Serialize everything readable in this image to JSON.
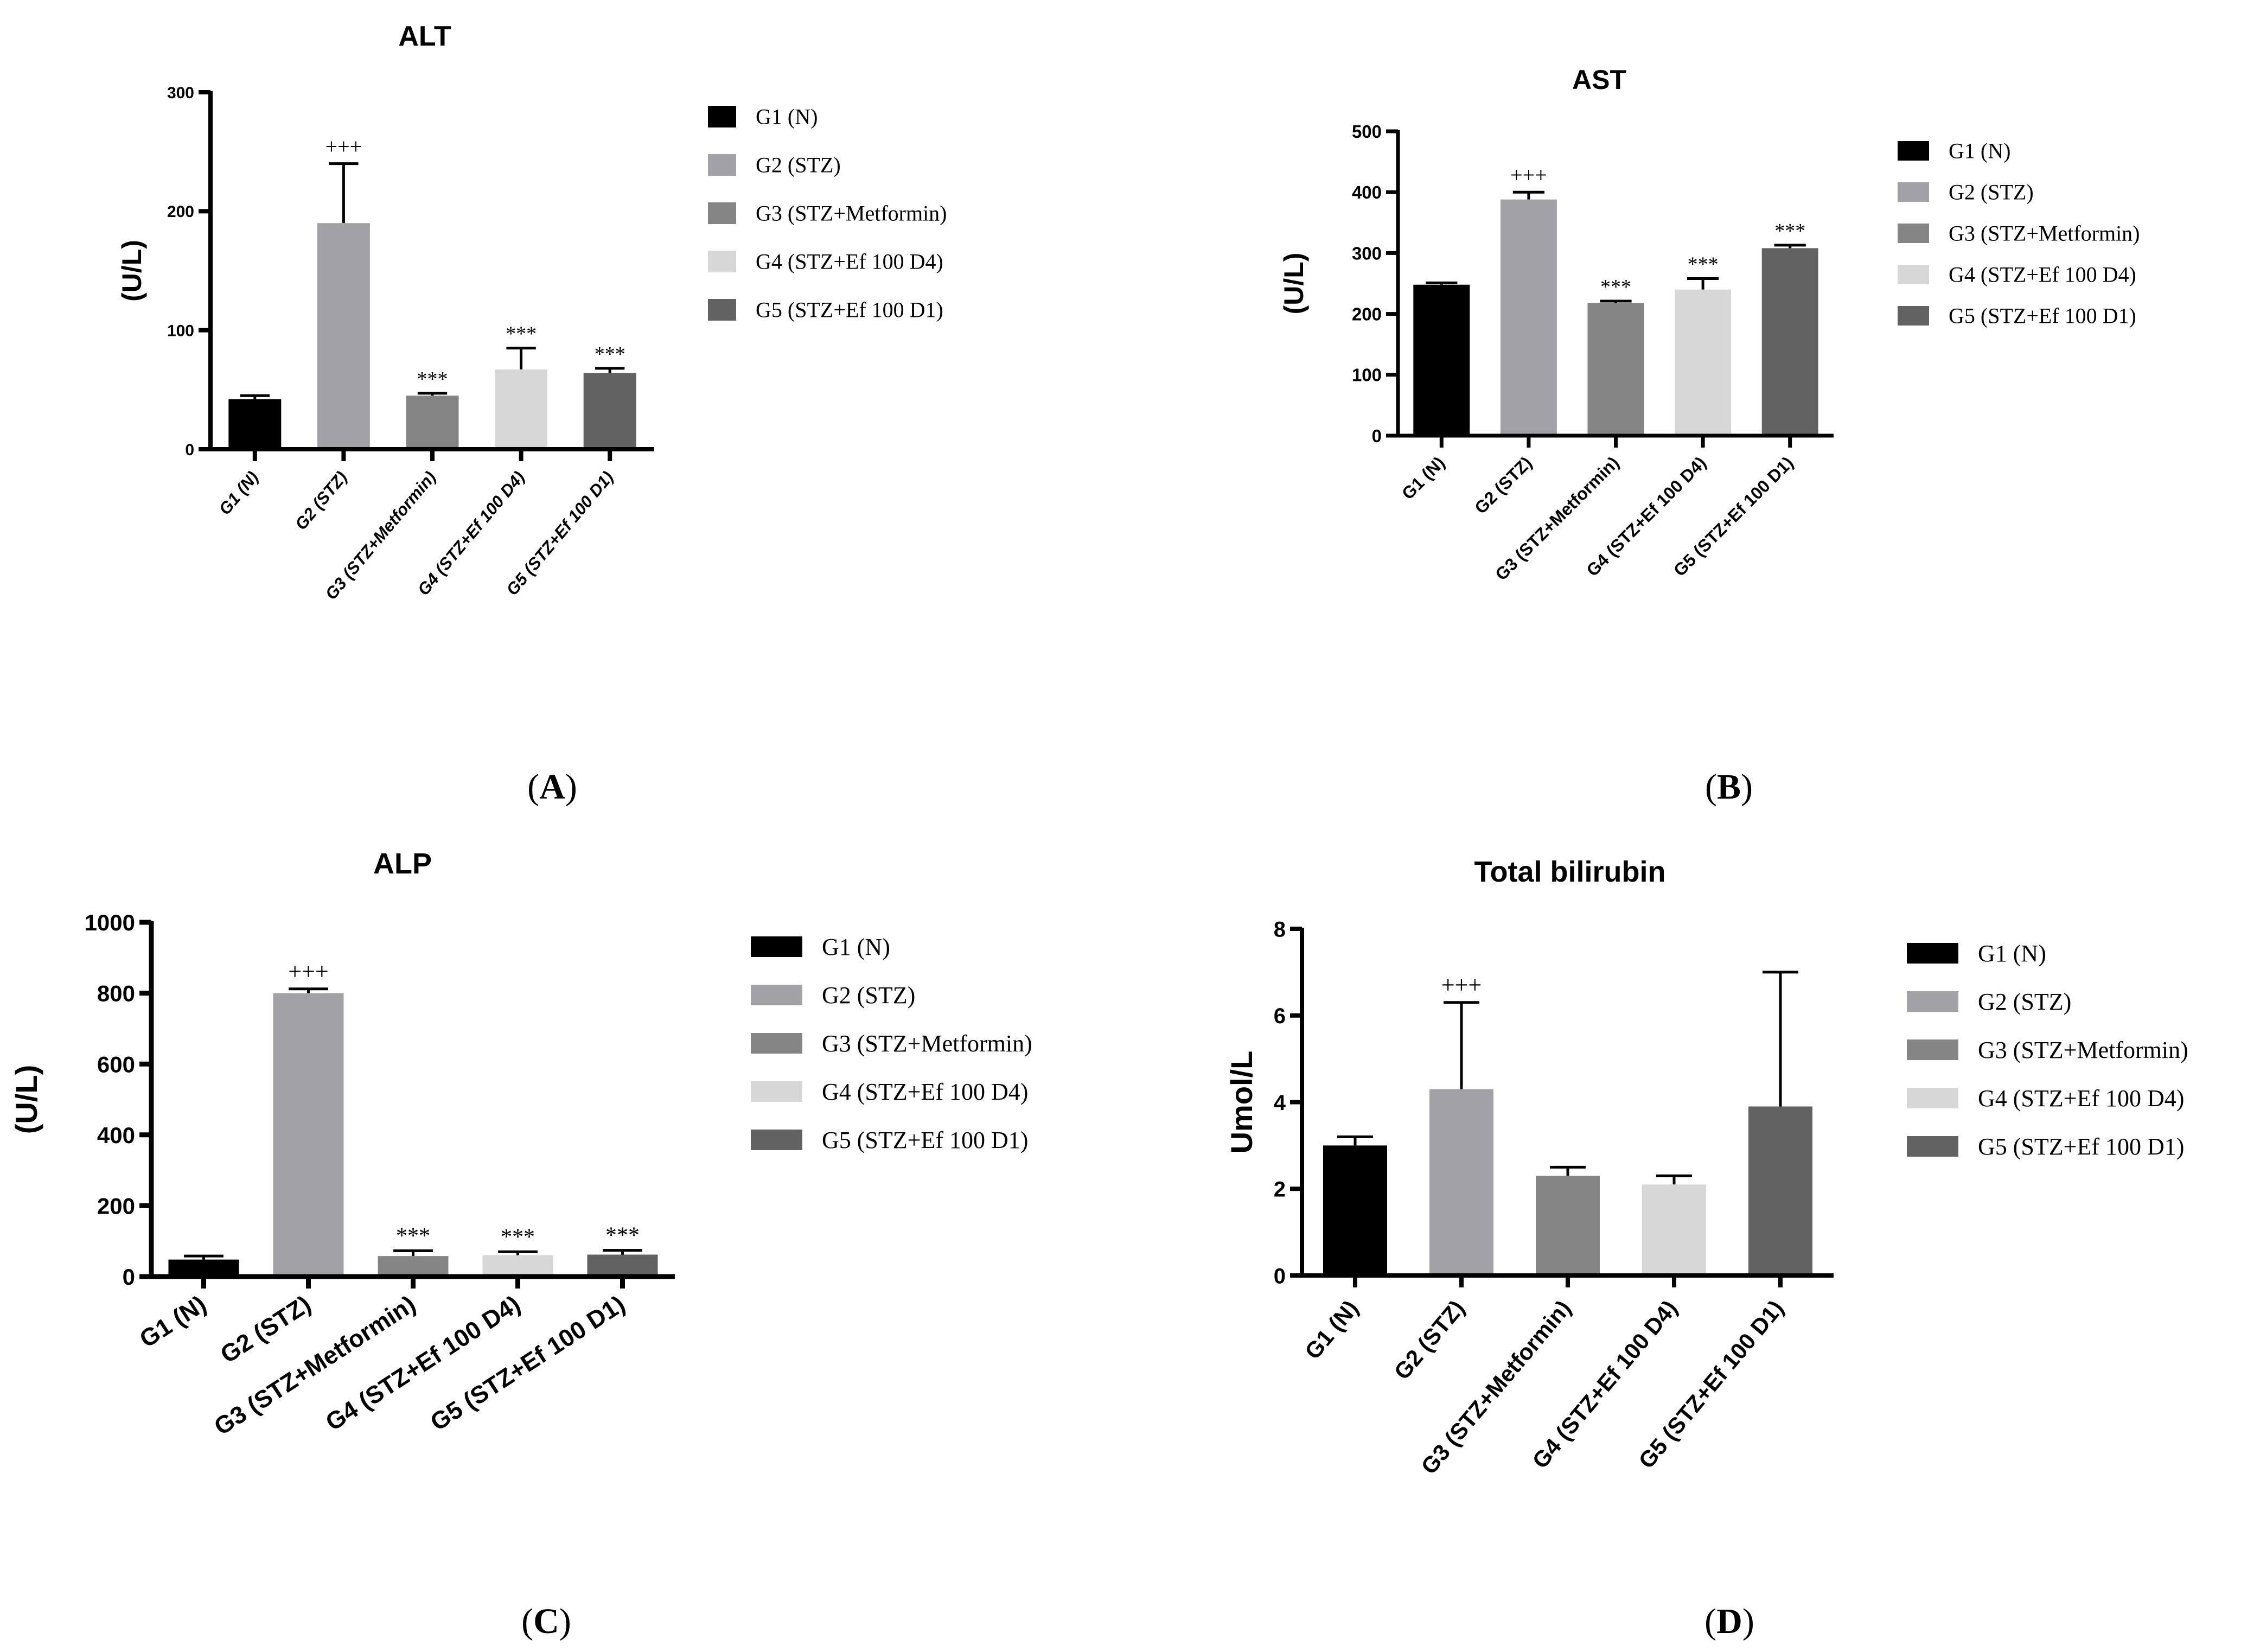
{
  "colors": {
    "G1": "#000000",
    "G2": "#a2a2a6",
    "G3": "#858585",
    "G4": "#d7d7d7",
    "G5": "#626262"
  },
  "chart_data": [
    {
      "panel": "A",
      "panel_label": "(A)",
      "type": "bar",
      "title": "ALT",
      "ylabel": "(U/L)",
      "xlabel": "",
      "ylim": [
        0,
        300
      ],
      "yticks": [
        0,
        100,
        200,
        300
      ],
      "italic_ticks": true,
      "categories": [
        "G1 (N)",
        "G2 (STZ)",
        "G3 (STZ+Metformin)",
        "G4 (STZ+Ef 100 D4)",
        "G5 (STZ+Ef 100 D1)"
      ],
      "values": [
        42,
        190,
        45,
        67,
        64
      ],
      "errors": [
        3,
        50,
        2,
        18,
        4
      ],
      "annotations": [
        "",
        "+++",
        "***",
        "***",
        "***"
      ],
      "legend": [
        "G1 (N)",
        "G2 (STZ)",
        "G3 (STZ+Metformin)",
        "G4 (STZ+Ef 100 D4)",
        "G5 (STZ+Ef 100 D1)"
      ]
    },
    {
      "panel": "B",
      "panel_label": "(B)",
      "type": "bar",
      "title": "AST",
      "ylabel": "(U/L)",
      "xlabel": "",
      "ylim": [
        0,
        500
      ],
      "yticks": [
        0,
        100,
        200,
        300,
        400,
        500
      ],
      "italic_ticks": false,
      "categories": [
        "G1 (N)",
        "G2 (STZ)",
        "G3 (STZ+Metformin)",
        "G4 (STZ+Ef 100 D4)",
        "G5 (STZ+Ef 100 D1)"
      ],
      "values": [
        248,
        388,
        218,
        240,
        308
      ],
      "errors": [
        3,
        12,
        3,
        18,
        5
      ],
      "annotations": [
        "",
        "+++",
        "***",
        "***",
        "***"
      ],
      "legend": [
        "G1 (N)",
        "G2 (STZ)",
        "G3 (STZ+Metformin)",
        "G4 (STZ+Ef 100 D4)",
        "G5 (STZ+Ef 100 D1)"
      ]
    },
    {
      "panel": "C",
      "panel_label": "(C)",
      "type": "bar",
      "title": "ALP",
      "ylabel": "(U/L)",
      "xlabel": "",
      "ylim": [
        0,
        1000
      ],
      "yticks": [
        0,
        200,
        400,
        600,
        800,
        1000
      ],
      "italic_ticks": false,
      "categories": [
        "G1 (N)",
        "G2 (STZ)",
        "G3 (STZ+Metformin)",
        "G4 (STZ+Ef 100 D4)",
        "G5 (STZ+Ef 100 D1)"
      ],
      "values": [
        48,
        800,
        58,
        60,
        62
      ],
      "errors": [
        10,
        12,
        15,
        10,
        12
      ],
      "annotations": [
        "",
        "+++",
        "***",
        "***",
        "***"
      ],
      "legend": [
        "G1 (N)",
        "G2 (STZ)",
        "G3 (STZ+Metformin)",
        "G4 (STZ+Ef 100 D4)",
        "G5 (STZ+Ef 100 D1)"
      ]
    },
    {
      "panel": "D",
      "panel_label": "(D)",
      "type": "bar",
      "title": "Total bilirubin",
      "ylabel": "Umol/L",
      "xlabel": "",
      "ylim": [
        0,
        8
      ],
      "yticks": [
        0,
        2,
        4,
        6,
        8
      ],
      "italic_ticks": false,
      "categories": [
        "G1 (N)",
        "G2 (STZ)",
        "G3 (STZ+Metformin)",
        "G4 (STZ+Ef 100 D4)",
        "G5 (STZ+Ef 100 D1)"
      ],
      "values": [
        3.0,
        4.3,
        2.3,
        2.1,
        3.9
      ],
      "errors": [
        0.2,
        2.0,
        0.2,
        0.2,
        3.1
      ],
      "annotations": [
        "",
        "+++",
        "",
        "",
        ""
      ],
      "legend": [
        "G1 (N)",
        "G2 (STZ)",
        "G3 (STZ+Metformin)",
        "G4 (STZ+Ef 100 D4)",
        "G5 (STZ+Ef 100 D1)"
      ]
    }
  ]
}
